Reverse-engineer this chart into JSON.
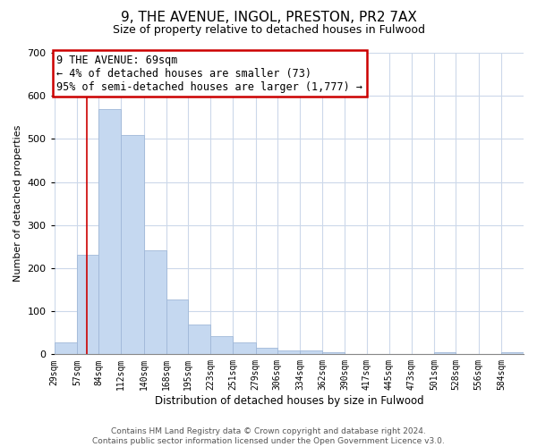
{
  "title": "9, THE AVENUE, INGOL, PRESTON, PR2 7AX",
  "subtitle": "Size of property relative to detached houses in Fulwood",
  "xlabel": "Distribution of detached houses by size in Fulwood",
  "ylabel": "Number of detached properties",
  "bar_labels": [
    "29sqm",
    "57sqm",
    "84sqm",
    "112sqm",
    "140sqm",
    "168sqm",
    "195sqm",
    "223sqm",
    "251sqm",
    "279sqm",
    "306sqm",
    "334sqm",
    "362sqm",
    "390sqm",
    "417sqm",
    "445sqm",
    "473sqm",
    "501sqm",
    "528sqm",
    "556sqm",
    "584sqm"
  ],
  "bar_values": [
    28,
    232,
    570,
    510,
    242,
    127,
    70,
    43,
    27,
    15,
    10,
    10,
    5,
    0,
    0,
    0,
    0,
    5,
    0,
    0,
    5
  ],
  "bar_color": "#c5d8f0",
  "bar_edge_color": "#a0b8d8",
  "bin_edges": [
    29,
    57,
    84,
    112,
    140,
    168,
    195,
    223,
    251,
    279,
    306,
    334,
    362,
    390,
    417,
    445,
    473,
    501,
    528,
    556,
    584,
    612
  ],
  "annotation_line1": "9 THE AVENUE: 69sqm",
  "annotation_line2": "← 4% of detached houses are smaller (73)",
  "annotation_line3": "95% of semi-detached houses are larger (1,777) →",
  "vline_color": "#cc0000",
  "vline_x": 69,
  "ylim": [
    0,
    700
  ],
  "yticks": [
    0,
    100,
    200,
    300,
    400,
    500,
    600,
    700
  ],
  "footer_line1": "Contains HM Land Registry data © Crown copyright and database right 2024.",
  "footer_line2": "Contains public sector information licensed under the Open Government Licence v3.0.",
  "background_color": "#ffffff",
  "grid_color": "#ccd8ea",
  "title_fontsize": 11,
  "subtitle_fontsize": 9,
  "ylabel_fontsize": 8,
  "xlabel_fontsize": 8.5,
  "annotation_fontsize": 8.5
}
